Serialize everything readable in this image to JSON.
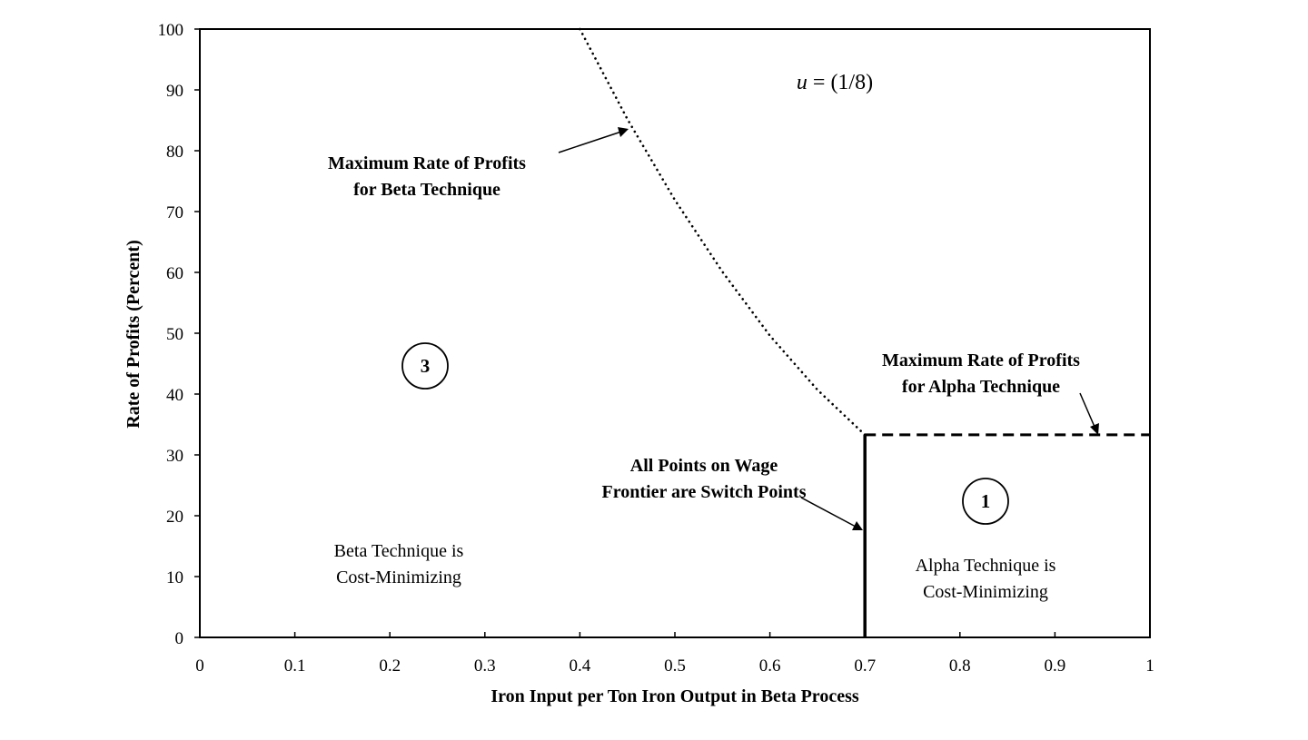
{
  "chart_data": {
    "type": "line",
    "title": "",
    "xlabel": "Iron Input per Ton Iron Output in Beta Process",
    "ylabel": "Rate of Profits (Percent)",
    "xlim": [
      0,
      1
    ],
    "ylim": [
      0,
      100
    ],
    "x_ticks": [
      "0",
      "0.1",
      "0.2",
      "0.3",
      "0.4",
      "0.5",
      "0.6",
      "0.7",
      "0.8",
      "0.9",
      "1"
    ],
    "y_ticks": [
      "0",
      "10",
      "20",
      "30",
      "40",
      "50",
      "60",
      "70",
      "80",
      "90",
      "100"
    ],
    "grid": false,
    "legend": "none",
    "parameter_label": "u = (1/8)",
    "series": [
      {
        "style": "dotted",
        "x": [
          0.4,
          0.45,
          0.5,
          0.55,
          0.6,
          0.65,
          0.7
        ],
        "y": [
          100,
          85.2,
          71.9,
          60.1,
          49.6,
          40.7,
          33.3
        ]
      },
      {
        "style": "dashed",
        "x": [
          0.7,
          1.0
        ],
        "y": [
          33.3,
          33.3
        ]
      },
      {
        "style": "solid",
        "x": [
          0.7,
          0.7
        ],
        "y": [
          0,
          33.3
        ]
      }
    ],
    "annotations": {
      "beta_max": [
        "Maximum Rate of Profits",
        "for Beta Technique"
      ],
      "alpha_max": [
        "Maximum Rate of Profits",
        "for Alpha Technique"
      ],
      "switch_points": [
        "All Points on Wage",
        "Frontier are Switch Points"
      ],
      "beta_region": [
        "Beta Technique is",
        "Cost-Minimizing"
      ],
      "alpha_region": [
        "Alpha Technique is",
        "Cost-Minimizing"
      ],
      "region_3": "3",
      "region_1": "1"
    }
  }
}
